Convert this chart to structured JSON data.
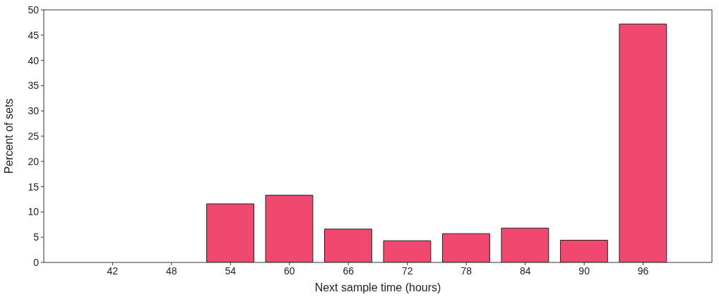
{
  "chart_data": {
    "type": "bar",
    "xlabel": "Next sample time (hours)",
    "ylabel": "Percent of sets",
    "x": [
      42,
      48,
      54,
      60,
      66,
      72,
      78,
      84,
      90,
      96
    ],
    "values": [
      0,
      0,
      11.6,
      13.3,
      6.6,
      4.3,
      5.7,
      6.8,
      4.4,
      47.2
    ],
    "color": "#f0486e",
    "xlim": [
      35,
      103
    ],
    "xticks": [
      42,
      48,
      54,
      60,
      66,
      72,
      78,
      84,
      90,
      96
    ],
    "ylim": [
      0,
      50
    ],
    "yticks": [
      0,
      5,
      10,
      15,
      20,
      25,
      30,
      35,
      40,
      45,
      50
    ],
    "grid": false
  }
}
